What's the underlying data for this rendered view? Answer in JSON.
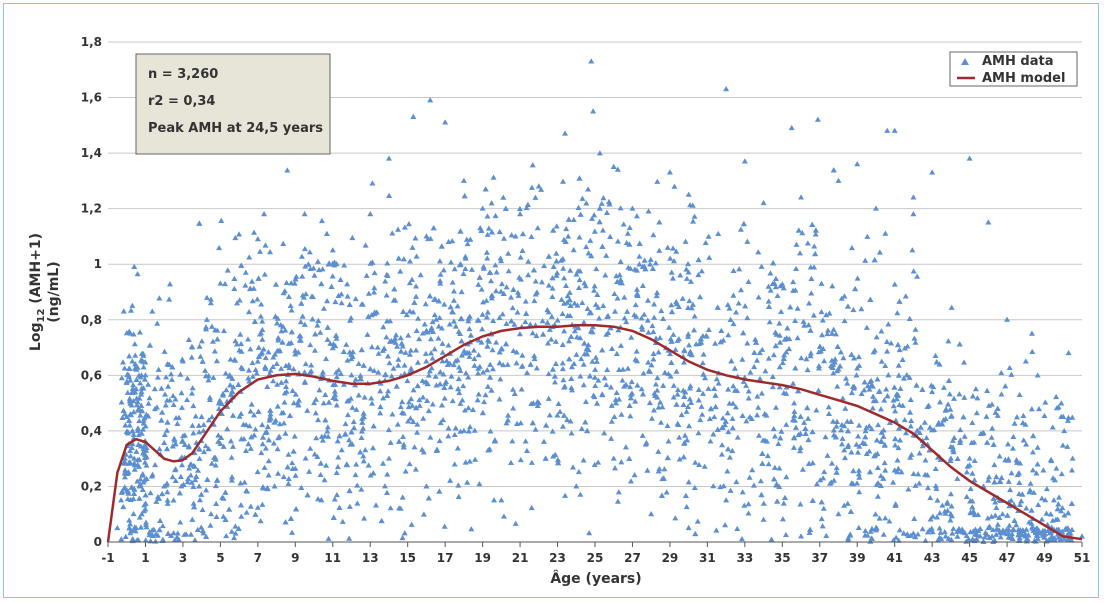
{
  "chart_data": {
    "type": "scatter",
    "title": "",
    "xlabel": "Âge (years)",
    "ylabel_main": "Log",
    "ylabel_sub": "12",
    "ylabel_rest": " (AMH+1)",
    "ylabel_unit": "(ng/mL)",
    "xlim": [
      -1,
      51
    ],
    "ylim": [
      0,
      1.8
    ],
    "xticks": [
      "-1",
      "1",
      "3",
      "5",
      "7",
      "9",
      "11",
      "13",
      "15",
      "17",
      "19",
      "21",
      "23",
      "25",
      "27",
      "29",
      "31",
      "33",
      "35",
      "37",
      "39",
      "41",
      "43",
      "45",
      "47",
      "49",
      "51"
    ],
    "yticks": [
      "0",
      "0,2",
      "0,4",
      "0,6",
      "0,8",
      "1",
      "1,2",
      "1,4",
      "1,6",
      "1,8"
    ],
    "grid": true,
    "legend": {
      "position": "top-right",
      "entries": [
        {
          "name": "AMH data",
          "symbol": "triangle",
          "color": "#5b8fd0"
        },
        {
          "name": "AMH model",
          "symbol": "line",
          "color": "#9e2a2b"
        }
      ]
    },
    "stats_box": {
      "n": "n = 3,260",
      "r2": "r2 = 0,34",
      "peak": "Peak AMH at 24,5 years"
    },
    "series": [
      {
        "name": "AMH model",
        "type": "line",
        "color": "#9e2a2b",
        "x": [
          -1,
          -0.5,
          0,
          0.5,
          1,
          1.5,
          2,
          2.5,
          3,
          3.5,
          4,
          5,
          6,
          7,
          8,
          9,
          10,
          11,
          12,
          13,
          14,
          15,
          16,
          17,
          18,
          19,
          20,
          21,
          22,
          23,
          24,
          25,
          26,
          27,
          28,
          29,
          30,
          31,
          32,
          33,
          34,
          35,
          36,
          37,
          38,
          39,
          40,
          41,
          42,
          43,
          44,
          45,
          46,
          47,
          48,
          49,
          50,
          51
        ],
        "y": [
          0,
          0.25,
          0.35,
          0.37,
          0.36,
          0.33,
          0.3,
          0.29,
          0.295,
          0.32,
          0.37,
          0.47,
          0.54,
          0.585,
          0.6,
          0.605,
          0.595,
          0.58,
          0.57,
          0.57,
          0.58,
          0.6,
          0.63,
          0.67,
          0.71,
          0.74,
          0.76,
          0.77,
          0.775,
          0.775,
          0.78,
          0.78,
          0.775,
          0.76,
          0.73,
          0.69,
          0.65,
          0.62,
          0.6,
          0.585,
          0.575,
          0.565,
          0.55,
          0.53,
          0.51,
          0.49,
          0.46,
          0.43,
          0.39,
          0.33,
          0.27,
          0.22,
          0.18,
          0.14,
          0.1,
          0.06,
          0.02,
          0.01
        ]
      },
      {
        "name": "AMH data",
        "type": "scatter",
        "color": "#5b8fd0",
        "count": 3260,
        "points": [
          [
            -0.5,
            0.05
          ],
          [
            -0.3,
            0.15
          ],
          [
            -0.1,
            0.3
          ],
          [
            0,
            0.45
          ],
          [
            0.1,
            0.6
          ],
          [
            0.2,
            0.75
          ],
          [
            0.3,
            0.85
          ],
          [
            0.4,
            0.99
          ],
          [
            0.5,
            0.55
          ],
          [
            0.6,
            0.4
          ],
          [
            0.7,
            0.2
          ],
          [
            0.8,
            0.1
          ],
          [
            0.1,
            0.25
          ],
          [
            0.2,
            0.5
          ],
          [
            0.3,
            0.65
          ],
          [
            0.4,
            0.3
          ],
          [
            0.5,
            0.05
          ],
          [
            1,
            0.6
          ],
          [
            1.5,
            0.55
          ],
          [
            2,
            0.2
          ],
          [
            3,
            0.65
          ],
          [
            3.5,
            0.7
          ],
          [
            4,
            0.45
          ],
          [
            4.5,
            0.1
          ],
          [
            5,
            0.93
          ],
          [
            5.5,
            0.6
          ],
          [
            15.3,
            1.53
          ],
          [
            16.2,
            1.59
          ],
          [
            17,
            1.51
          ],
          [
            24.8,
            1.73
          ],
          [
            24.9,
            1.55
          ],
          [
            23.4,
            1.47
          ],
          [
            32,
            1.63
          ],
          [
            36.9,
            1.52
          ],
          [
            35.5,
            1.49
          ],
          [
            40.6,
            1.48
          ],
          [
            41,
            1.48
          ],
          [
            45,
            1.38
          ],
          [
            14,
            1.38
          ],
          [
            46,
            1.15
          ],
          [
            43,
            1.33
          ],
          [
            42,
            1.24
          ],
          [
            51,
            0.02
          ],
          [
            50.5,
            0.3
          ],
          [
            50,
            0.45
          ],
          [
            49.5,
            0.15
          ],
          [
            48,
            0.65
          ],
          [
            47,
            0.8
          ],
          [
            7,
            1.09
          ],
          [
            9.5,
            1.18
          ],
          [
            11,
            1.05
          ],
          [
            13,
            1.18
          ],
          [
            16,
            1.1
          ],
          [
            18,
            1.3
          ],
          [
            19,
            1.2
          ],
          [
            21,
            1.18
          ],
          [
            22,
            1.28
          ],
          [
            26,
            1.35
          ],
          [
            27,
            1.2
          ],
          [
            29,
            1.33
          ],
          [
            30,
            1.25
          ],
          [
            33,
            1.37
          ],
          [
            34,
            1.22
          ],
          [
            36,
            1.24
          ],
          [
            38,
            1.3
          ],
          [
            39,
            1.36
          ],
          [
            40,
            1.2
          ],
          [
            42,
            1.18
          ],
          [
            10,
            0.5
          ],
          [
            12,
            0.6
          ],
          [
            14,
            0.3
          ],
          [
            16,
            0.2
          ],
          [
            18,
            0.4
          ],
          [
            20,
            0.15
          ],
          [
            22,
            0.5
          ],
          [
            24,
            0.2
          ],
          [
            26,
            0.3
          ],
          [
            28,
            0.1
          ],
          [
            30,
            0.05
          ],
          [
            32,
            0.15
          ],
          [
            34,
            0.08
          ],
          [
            36,
            0.02
          ],
          [
            38,
            0.1
          ],
          [
            40,
            0.05
          ],
          [
            42,
            0.03
          ],
          [
            44,
            0.1
          ],
          [
            46,
            0.05
          ],
          [
            48,
            0.02
          ]
        ]
      }
    ]
  }
}
